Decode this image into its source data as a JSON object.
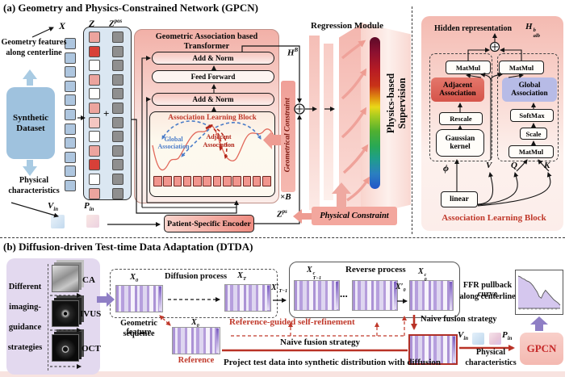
{
  "colors": {
    "panel_pink": "#f2b0a7",
    "salmon_arrow": "#ee9c92",
    "accent_red": "#c0392b",
    "adjacent_red": "#d5544a",
    "global_lavender": "#b7bbe6",
    "synthetic_blue": "#9fc2de",
    "imaging_panel_purple": "#e3d9ef",
    "purple_arrow": "#8f7fc5",
    "token_gray": "#8f8f8f",
    "vessel_gradient": [
      "#5c0a28",
      "#b81c24",
      "#ead818",
      "#50b030",
      "#2456c8"
    ]
  },
  "section_a": {
    "title": "(a) Geometry and Physics-Constrained Network (GPCN)",
    "labels": {
      "geometry_features_1": "Geometry features",
      "geometry_features_2": "along centerline",
      "synthetic_1": "Synthetic",
      "synthetic_2": "Dataset",
      "physical_1": "Physical",
      "physical_2": "characteristics",
      "plus": "+",
      "transformer_title": "Geometric Association based Transformer",
      "add_norm": "Add & Norm",
      "feed_forward": "Feed Forward",
      "alb_title": "Association Learning Block",
      "global_1": "Global",
      "global_2": "Association",
      "adjacent_1": "Adjacent",
      "adjacent_2": "Association",
      "geometrical_constraint": "Geometrical Constraint",
      "encoder": "Patient-Specific Encoder",
      "physical_constraint": "Physical Constraint",
      "regression_title": "Regression Module",
      "physics_supervision_1": "Physics-based",
      "physics_supervision_2": "Supervision",
      "times_b": "×B"
    },
    "math": {
      "x": {
        "base": "X"
      },
      "z": {
        "base": "Z"
      },
      "zpos": {
        "base": "Z",
        "sup": "pos"
      },
      "vin": {
        "base": "V",
        "sub": "in"
      },
      "pin": {
        "base": "P",
        "sub": "in"
      },
      "hb": {
        "base": "H",
        "sup": "B"
      },
      "zps": {
        "base": "Z",
        "sup": "ps"
      }
    },
    "columns": {
      "x": {
        "count": 11,
        "color": "#aec6df"
      },
      "z": {
        "colors": [
          "#eca49e",
          "#d84038",
          "#ffffff",
          "#eca49e",
          "#ffffff",
          "#eca49e",
          "#f4c6c2",
          "#ffffff",
          "#eca49e",
          "#d84038",
          "#ffffff",
          "#eca49e"
        ]
      },
      "zpos": {
        "count": 12,
        "color": "#8f8f8f"
      },
      "alb_tokens": {
        "count": 12,
        "color": "#f1958d"
      }
    }
  },
  "right_panel": {
    "labels": {
      "hidden_representation": "Hidden representation",
      "matmul": "MatMul",
      "adjacent_1": "Adjacent",
      "adjacent_2": "Association",
      "global_1": "Global",
      "global_2": "Association",
      "rescale": "Rescale",
      "gaussian_1": "Gaussian",
      "gaussian_2": "kernel",
      "softmax": "SoftMax",
      "scale": "Scale",
      "linear": "linear",
      "caption": "Association Learning Block"
    },
    "math": {
      "halb": {
        "base": "H",
        "sup": "b",
        "sub": "alb"
      },
      "phi": {
        "base": "ϕ"
      },
      "v": {
        "base": "V"
      },
      "q": {
        "base": "Q"
      },
      "k": {
        "base": "K"
      }
    }
  },
  "section_b": {
    "title": "(b) Diffusion-driven Test-time Data Adaptation (DTDA)",
    "labels": {
      "strategies_1": "Different",
      "strategies_2": "imaging-",
      "strategies_3": "guidance",
      "strategies_4": "strategies",
      "ca": "CA",
      "ivus": "IVUS",
      "oct": "OCT",
      "diffusion_process": "Diffusion process",
      "reverse_process": "Reverse process",
      "dots": "...",
      "ffr_1": "FFR pullback curve",
      "ffr_2": "along centerline",
      "geo_seq_1": "Geometric feature",
      "geo_seq_2": "sequence",
      "reference": "Reference",
      "refinement": "Reference-guided self-refinement",
      "naive_fusion": "Naive fusion strategy",
      "project": "Project test data into synthetic distribution with diffusion",
      "physical_1": "Physical",
      "physical_2": "characteristics",
      "gpcn": "GPCN"
    },
    "math": {
      "x0": {
        "base": "X",
        "sub": "0"
      },
      "xT": {
        "base": "X",
        "sub": "T"
      },
      "xpT1": {
        "base": "X′",
        "sub": "T−1"
      },
      "xcT1": {
        "base": "X",
        "sup": "c",
        "sub": "T−1"
      },
      "xp0": {
        "base": "X′",
        "sub": "0"
      },
      "xc0": {
        "base": "X",
        "sup": "c",
        "sub": "0"
      },
      "vin": {
        "base": "V",
        "sub": "in"
      },
      "pin": {
        "base": "P",
        "sub": "in"
      }
    }
  },
  "chart_data": {
    "type": "area",
    "title": "FFR pullback curve along centerline",
    "x_percent": [
      0,
      5,
      10,
      15,
      20,
      25,
      30,
      35,
      40,
      45,
      50,
      55,
      60,
      65,
      70,
      75,
      80,
      85,
      90,
      95,
      100
    ],
    "ffr": [
      1.0,
      0.99,
      0.97,
      0.96,
      0.94,
      0.93,
      0.91,
      0.88,
      0.84,
      0.8,
      0.74,
      0.72,
      0.78,
      0.82,
      0.79,
      0.76,
      0.73,
      0.7,
      0.68,
      0.66,
      0.63
    ],
    "ylim": [
      0.55,
      1.05
    ],
    "grid": false,
    "legend": false
  }
}
